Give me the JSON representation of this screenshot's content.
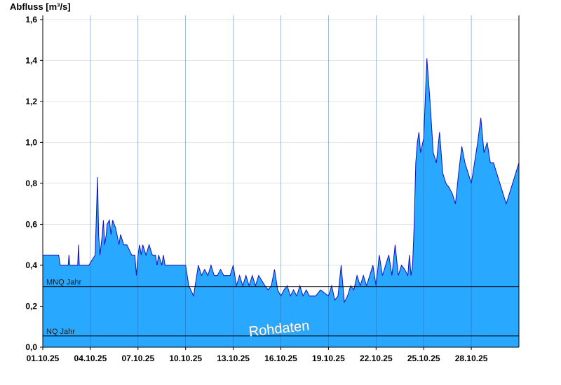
{
  "chart_data": {
    "type": "area",
    "ylabel": "Abfluss [m³/s]",
    "ylim": [
      0,
      1.62
    ],
    "yticks": [
      0,
      0.2,
      0.4,
      0.6,
      0.8,
      1.0,
      1.2,
      1.4,
      1.6
    ],
    "ytick_labels": [
      "0,0",
      "0,2",
      "0,4",
      "0,6",
      "0,8",
      "1,0",
      "1,2",
      "1,4",
      "1,6"
    ],
    "xlim": [
      0,
      30
    ],
    "xticks": [
      0,
      3,
      6,
      9,
      12,
      15,
      18,
      21,
      24,
      27
    ],
    "xtick_labels": [
      "01.10.25",
      "04.10.25",
      "07.10.25",
      "10.10.25",
      "13.10.25",
      "16.10.25",
      "19.10.25",
      "22.10.25",
      "25.10.25",
      "28.10.25"
    ],
    "grid": true,
    "series": [
      {
        "x": [
          0,
          1.0,
          1.1,
          1.6,
          1.65,
          1.7,
          2.2,
          2.25,
          2.3,
          2.6,
          2.9,
          3.3,
          3.45,
          3.52,
          3.6,
          3.75,
          3.82,
          3.9,
          4.0,
          4.05,
          4.2,
          4.3,
          4.4,
          4.6,
          4.8,
          4.9,
          5.1,
          5.3,
          5.6,
          5.8,
          5.9,
          6.0,
          6.1,
          6.2,
          6.3,
          6.5,
          6.7,
          6.9,
          7.1,
          7.2,
          7.3,
          7.5,
          7.6,
          7.7,
          8.0,
          8.2,
          8.5,
          9.0,
          9.2,
          9.5,
          9.6,
          9.8,
          10.0,
          10.2,
          10.4,
          10.6,
          10.8,
          11.0,
          11.2,
          11.4,
          11.6,
          11.8,
          12.0,
          12.2,
          12.4,
          12.6,
          12.8,
          13.0,
          13.2,
          13.4,
          13.6,
          14.0,
          14.2,
          14.4,
          14.6,
          14.8,
          15.0,
          15.2,
          15.4,
          15.6,
          15.8,
          16.0,
          16.2,
          16.4,
          16.6,
          16.8,
          17.0,
          17.2,
          17.5,
          18.0,
          18.2,
          18.4,
          18.6,
          18.8,
          19.0,
          19.2,
          19.4,
          19.6,
          19.8,
          20.0,
          20.2,
          20.4,
          20.6,
          20.8,
          21.0,
          21.2,
          21.4,
          21.6,
          21.8,
          22.0,
          22.2,
          22.4,
          22.6,
          22.8,
          23.0,
          23.1,
          23.2,
          23.3,
          23.4,
          23.5,
          23.6,
          23.7,
          23.8,
          24.0,
          24.2,
          24.4,
          24.6,
          24.8,
          25.0,
          25.2,
          25.4,
          25.6,
          25.8,
          26.0,
          26.2,
          26.4,
          26.6,
          26.8,
          27.0,
          27.2,
          27.4,
          27.6,
          27.8,
          28.0,
          28.2,
          28.4,
          28.6,
          28.8,
          29.0,
          29.2,
          29.4,
          29.6,
          29.8,
          30.0
        ],
        "y": [
          0.45,
          0.45,
          0.4,
          0.4,
          0.45,
          0.4,
          0.4,
          0.5,
          0.4,
          0.4,
          0.4,
          0.45,
          0.83,
          0.55,
          0.45,
          0.55,
          0.62,
          0.5,
          0.55,
          0.6,
          0.62,
          0.55,
          0.62,
          0.58,
          0.5,
          0.55,
          0.5,
          0.5,
          0.45,
          0.45,
          0.35,
          0.45,
          0.5,
          0.45,
          0.5,
          0.45,
          0.5,
          0.45,
          0.45,
          0.4,
          0.45,
          0.4,
          0.45,
          0.4,
          0.4,
          0.4,
          0.4,
          0.4,
          0.3,
          0.25,
          0.3,
          0.4,
          0.35,
          0.38,
          0.35,
          0.4,
          0.35,
          0.35,
          0.38,
          0.35,
          0.35,
          0.35,
          0.4,
          0.3,
          0.35,
          0.3,
          0.35,
          0.3,
          0.35,
          0.3,
          0.35,
          0.3,
          0.28,
          0.3,
          0.38,
          0.28,
          0.25,
          0.28,
          0.3,
          0.25,
          0.28,
          0.25,
          0.3,
          0.25,
          0.28,
          0.25,
          0.25,
          0.25,
          0.28,
          0.25,
          0.3,
          0.23,
          0.25,
          0.4,
          0.22,
          0.25,
          0.3,
          0.28,
          0.35,
          0.3,
          0.35,
          0.3,
          0.35,
          0.4,
          0.3,
          0.45,
          0.35,
          0.4,
          0.45,
          0.35,
          0.5,
          0.35,
          0.4,
          0.38,
          0.35,
          0.45,
          0.35,
          0.4,
          0.6,
          0.9,
          1.0,
          1.05,
          0.95,
          1.02,
          1.41,
          1.2,
          0.95,
          0.9,
          1.05,
          0.85,
          0.8,
          0.78,
          0.75,
          0.7,
          0.85,
          0.98,
          0.9,
          0.85,
          0.8,
          0.9,
          1.0,
          1.12,
          0.95,
          1.0,
          0.9,
          0.9,
          0.85,
          0.8,
          0.75,
          0.7,
          0.75,
          0.8,
          0.85,
          0.9
        ],
        "fill_color": "#29a8ff",
        "line_color": "#1010c0"
      }
    ],
    "reference_lines": [
      {
        "label": "MNQ Jahr",
        "value": 0.295
      },
      {
        "label": "NQ Jahr",
        "value": 0.055
      }
    ],
    "annotation": "Rohdaten"
  }
}
